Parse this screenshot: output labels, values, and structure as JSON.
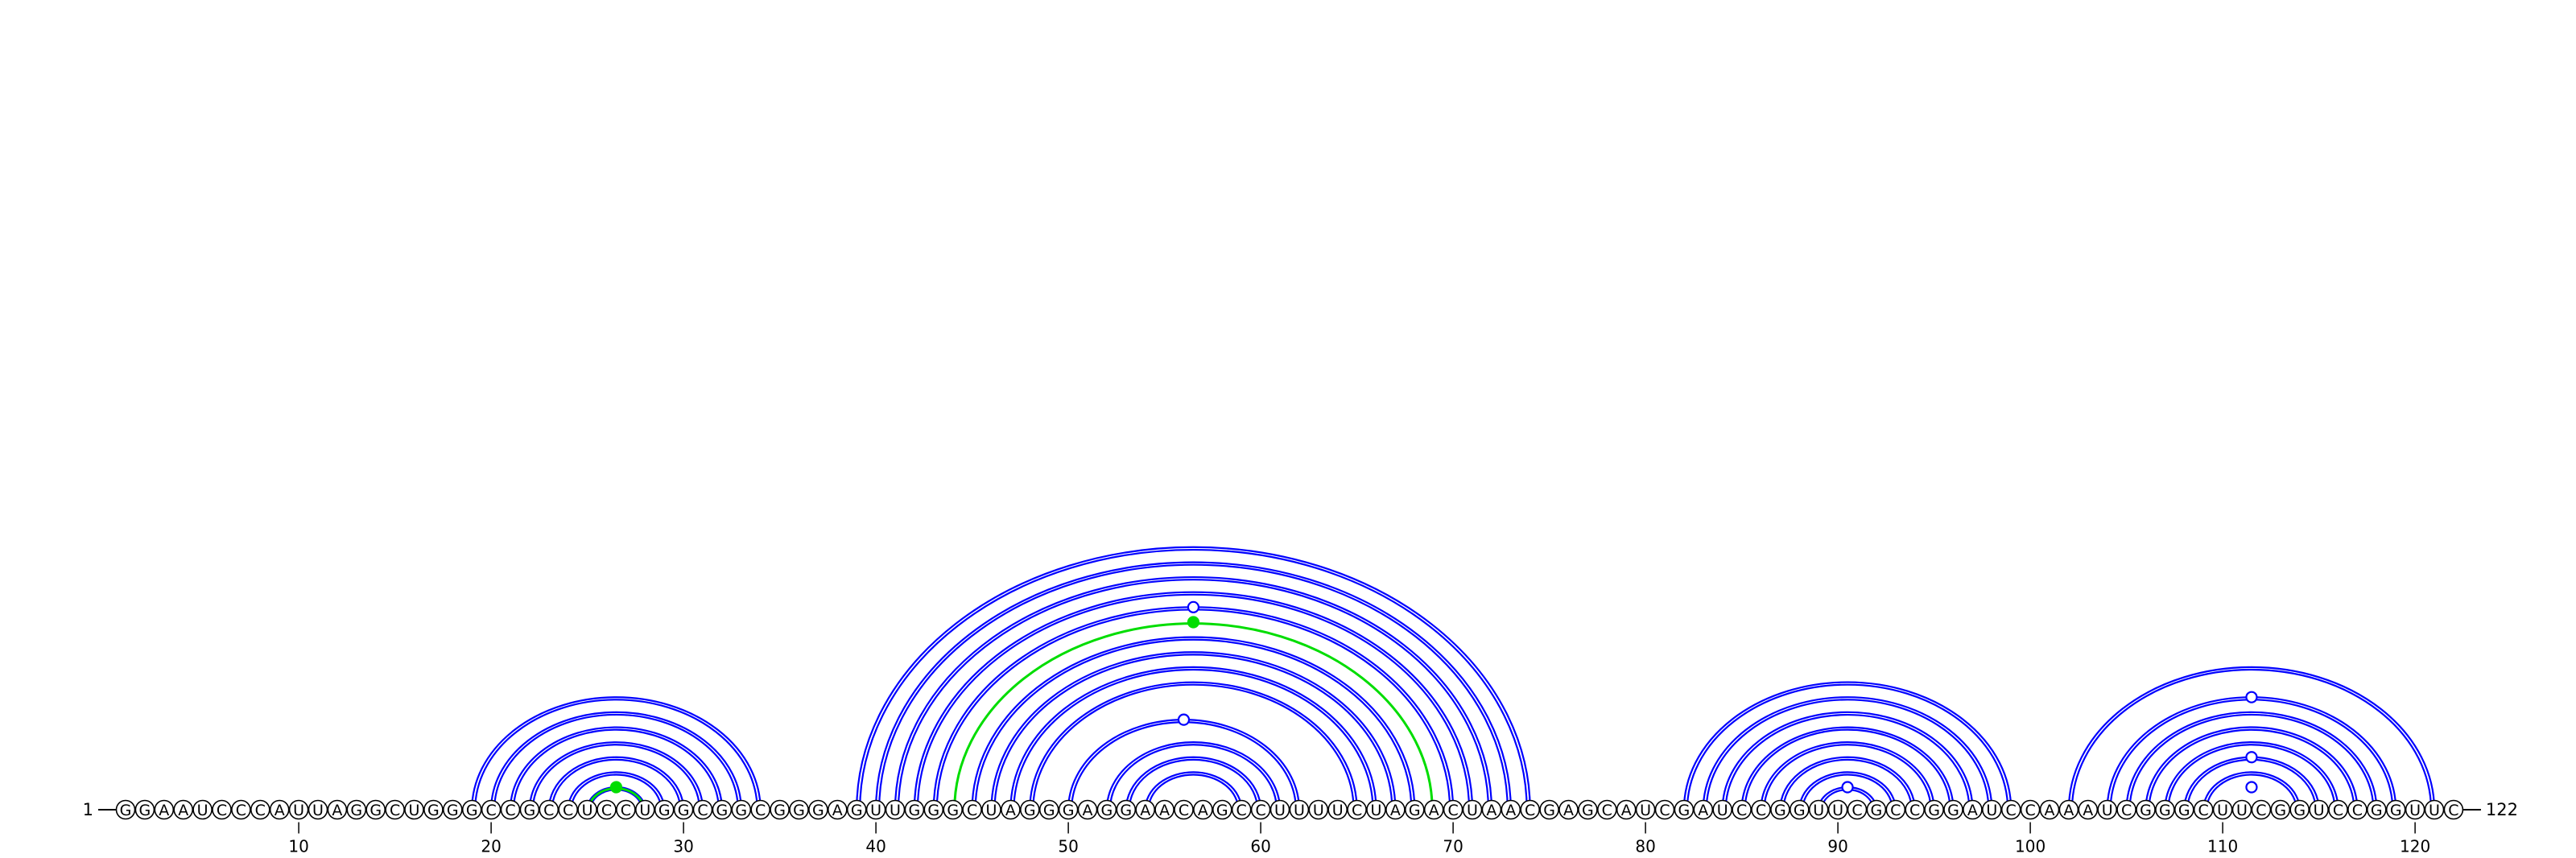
{
  "sequence": "GGAAUCCCAUUAGGCUGGGCCGCCUCCUGGCGGCGGGAGUUGGGCUAGGGAGGAACAGCCUUUUCUAGACUAACGAGCAUCGAUCCGGUUCGCCGGAUCCAAAUCGGGCUUCGGUCCGGUUC",
  "start_label": "1",
  "end_label": "122",
  "tick_labels": [
    "10",
    "20",
    "30",
    "40",
    "50",
    "60",
    "70",
    "80",
    "90",
    "100",
    "110",
    "120"
  ],
  "colors": {
    "arc": "#0000ff",
    "highlight_arc": "#00dd00",
    "nucleotide_fill": "#ffffff",
    "nucleotide_stroke": "#000000"
  },
  "arcs": [
    {
      "i": 19,
      "j": 34
    },
    {
      "i": 20,
      "j": 33
    },
    {
      "i": 21,
      "j": 32
    },
    {
      "i": 22,
      "j": 31
    },
    {
      "i": 23,
      "j": 30
    },
    {
      "i": 24,
      "j": 29
    },
    {
      "i": 25,
      "j": 28
    },
    {
      "i": 39,
      "j": 74
    },
    {
      "i": 40,
      "j": 73
    },
    {
      "i": 41,
      "j": 72
    },
    {
      "i": 42,
      "j": 71
    },
    {
      "i": 43,
      "j": 70
    },
    {
      "i": 45,
      "j": 68
    },
    {
      "i": 46,
      "j": 67
    },
    {
      "i": 47,
      "j": 66
    },
    {
      "i": 48,
      "j": 65
    },
    {
      "i": 50,
      "j": 62
    },
    {
      "i": 52,
      "j": 61
    },
    {
      "i": 53,
      "j": 60
    },
    {
      "i": 54,
      "j": 59
    },
    {
      "i": 82,
      "j": 99
    },
    {
      "i": 83,
      "j": 98
    },
    {
      "i": 84,
      "j": 97
    },
    {
      "i": 85,
      "j": 96
    },
    {
      "i": 86,
      "j": 95
    },
    {
      "i": 87,
      "j": 94
    },
    {
      "i": 88,
      "j": 93
    },
    {
      "i": 89,
      "j": 92
    },
    {
      "i": 102,
      "j": 121
    },
    {
      "i": 104,
      "j": 119
    },
    {
      "i": 105,
      "j": 118
    },
    {
      "i": 106,
      "j": 117
    },
    {
      "i": 107,
      "j": 116
    },
    {
      "i": 108,
      "j": 115
    },
    {
      "i": 109,
      "j": 114
    }
  ],
  "highlight_arcs": [
    {
      "i": 25,
      "j": 28
    },
    {
      "i": 44,
      "j": 69
    }
  ],
  "markers": [
    {
      "position": 26.5,
      "arc_i": 25,
      "arc_j": 28,
      "filled": true
    },
    {
      "position": 56.5,
      "arc_i": 44,
      "arc_j": 69,
      "filled": true
    },
    {
      "position": 56.5,
      "arc_i": 43,
      "arc_j": 70,
      "filled": false
    },
    {
      "position": 56,
      "arc_i": 50,
      "arc_j": 62,
      "filled": false
    },
    {
      "position": 90.5,
      "arc_i": 89,
      "arc_j": 92,
      "filled": false
    },
    {
      "position": 111.5,
      "arc_i": 104,
      "arc_j": 119,
      "filled": false
    },
    {
      "position": 111.5,
      "arc_i": 108,
      "arc_j": 115,
      "filled": false
    },
    {
      "position": 111.5,
      "arc_i": 110,
      "arc_j": 113,
      "filled": false
    }
  ]
}
